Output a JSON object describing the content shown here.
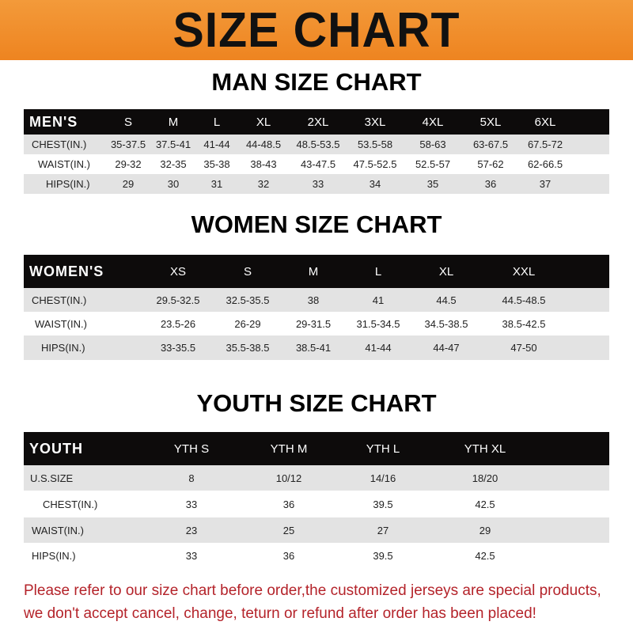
{
  "title": "SIZE CHART",
  "men": {
    "title": "MAN SIZE CHART",
    "header": [
      "MEN'S",
      "S",
      "M",
      "L",
      "XL",
      "2XL",
      "3XL",
      "4XL",
      "5XL",
      "6XL"
    ],
    "rows": [
      [
        "CHEST(IN.)",
        "35-37.5",
        "37.5-41",
        "41-44",
        "44-48.5",
        "48.5-53.5",
        "53.5-58",
        "58-63",
        "63-67.5",
        "67.5-72"
      ],
      [
        "WAIST(IN.)",
        "29-32",
        "32-35",
        "35-38",
        "38-43",
        "43-47.5",
        "47.5-52.5",
        "52.5-57",
        "57-62",
        "62-66.5"
      ],
      [
        "HIPS(IN.)",
        "29",
        "30",
        "31",
        "32",
        "33",
        "34",
        "35",
        "36",
        "37"
      ]
    ]
  },
  "women": {
    "title": "WOMEN SIZE CHART",
    "header": [
      "WOMEN'S",
      "XS",
      "S",
      "M",
      "L",
      "XL",
      "XXL"
    ],
    "rows": [
      [
        "CHEST(IN.)",
        "29.5-32.5",
        "32.5-35.5",
        "38",
        "41",
        "44.5",
        "44.5-48.5"
      ],
      [
        "WAIST(IN.)",
        "23.5-26",
        "26-29",
        "29-31.5",
        "31.5-34.5",
        "34.5-38.5",
        "38.5-42.5"
      ],
      [
        "HIPS(IN.)",
        "33-35.5",
        "35.5-38.5",
        "38.5-41",
        "41-44",
        "44-47",
        "47-50"
      ]
    ]
  },
  "youth": {
    "title": "YOUTH SIZE CHART",
    "header": [
      "YOUTH",
      "YTH S",
      "YTH M",
      "YTH L",
      "YTH XL"
    ],
    "rows": [
      [
        "U.S.SIZE",
        "8",
        "10/12",
        "14/16",
        "18/20"
      ],
      [
        "CHEST(IN.)",
        "33",
        "36",
        "39.5",
        "42.5"
      ],
      [
        "WAIST(IN.)",
        "23",
        "25",
        "27",
        "29"
      ],
      [
        "HIPS(IN.)",
        "33",
        "36",
        "39.5",
        "42.5"
      ]
    ]
  },
  "notes": [
    "Please refer to our size chart before order,the customized jerseys are special products,",
    "we don't accept cancel, change, teturn or refund after order has been placed!"
  ],
  "colors": {
    "banner": "#ee8420",
    "header_row": "#0d0b0b",
    "note": "#b4232a"
  }
}
